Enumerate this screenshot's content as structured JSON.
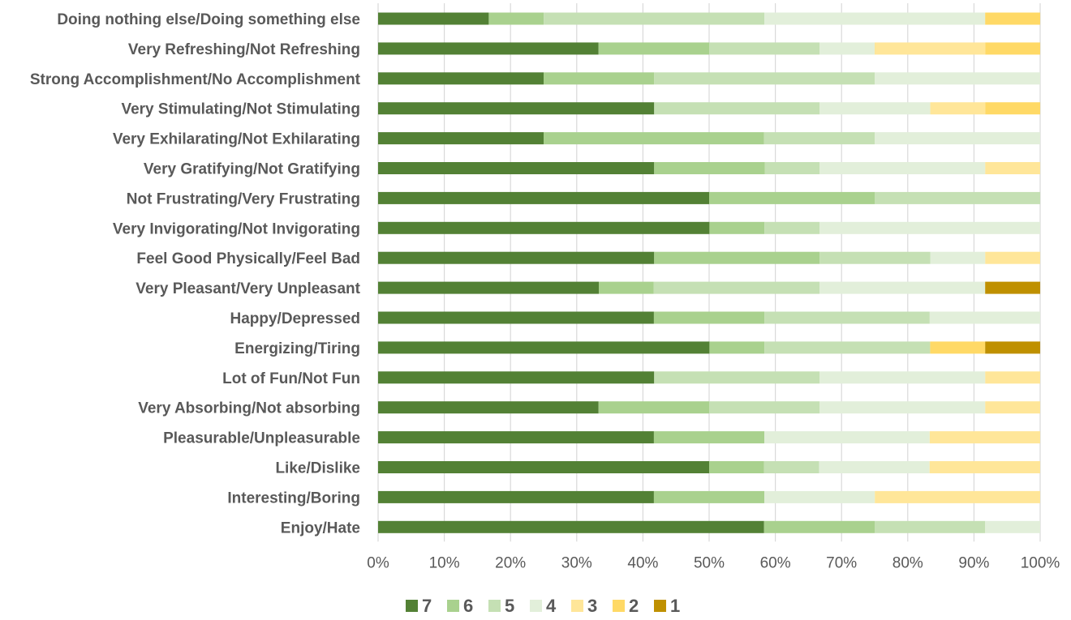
{
  "chart_data": {
    "type": "bar",
    "stacked": "percent",
    "orientation": "horizontal",
    "categories": [
      "Doing nothing else/Doing something else",
      "Very Refreshing/Not Refreshing",
      "Strong Accomplishment/No Accomplishment",
      "Very Stimulating/Not Stimulating",
      "Very Exhilarating/Not Exhilarating",
      "Very Gratifying/Not Gratifying",
      "Not Frustrating/Very Frustrating",
      "Very Invigorating/Not Invigorating",
      "Feel Good Physically/Feel Bad",
      "Very Pleasant/Very Unpleasant",
      "Happy/Depressed",
      "Energizing/Tiring",
      "Lot of Fun/Not Fun",
      "Very Absorbing/Not absorbing",
      "Pleasurable/Unpleasurable",
      "Like/Dislike",
      "Interesting/Boring",
      "Enjoy/Hate"
    ],
    "series": [
      {
        "name": "7",
        "color": "#538135",
        "values": [
          16.7,
          33.3,
          25.0,
          41.7,
          25.0,
          41.7,
          50.0,
          50.0,
          41.7,
          33.3,
          41.7,
          50.0,
          41.7,
          33.3,
          41.7,
          50.0,
          41.7,
          58.3
        ]
      },
      {
        "name": "6",
        "color": "#a9d18e",
        "values": [
          8.3,
          16.7,
          16.7,
          0,
          33.3,
          16.7,
          25.0,
          8.3,
          25.0,
          8.3,
          16.7,
          8.3,
          0,
          16.7,
          16.7,
          8.3,
          16.7,
          16.7
        ]
      },
      {
        "name": "5",
        "color": "#c5e0b4",
        "values": [
          33.3,
          16.7,
          33.3,
          25.0,
          16.7,
          8.3,
          25.0,
          8.3,
          16.7,
          25.0,
          25.0,
          25.0,
          25.0,
          16.7,
          0,
          8.3,
          0,
          16.7
        ]
      },
      {
        "name": "4",
        "color": "#e2efda",
        "values": [
          33.3,
          8.3,
          25.0,
          16.7,
          25.0,
          25.0,
          0,
          33.3,
          8.3,
          25.0,
          16.7,
          0,
          25.0,
          25.0,
          25.0,
          16.7,
          16.7,
          8.3
        ]
      },
      {
        "name": "3",
        "color": "#ffe699",
        "values": [
          0,
          16.7,
          0,
          8.3,
          0,
          8.3,
          0,
          0,
          8.3,
          0,
          0,
          0,
          8.3,
          8.3,
          16.7,
          16.7,
          25.0,
          0
        ]
      },
      {
        "name": "2",
        "color": "#ffd966",
        "values": [
          8.3,
          8.3,
          0,
          8.3,
          0,
          0,
          0,
          0,
          0,
          0,
          0,
          8.3,
          0,
          0,
          0,
          0,
          0,
          0
        ]
      },
      {
        "name": "1",
        "color": "#bf9000",
        "values": [
          0,
          0,
          0,
          0,
          0,
          0,
          0,
          0,
          0,
          8.3,
          0,
          8.3,
          0,
          0,
          0,
          0,
          0,
          0
        ]
      }
    ],
    "xlim": [
      0,
      100
    ],
    "x_ticks": [
      "0%",
      "10%",
      "20%",
      "30%",
      "40%",
      "50%",
      "60%",
      "70%",
      "80%",
      "90%",
      "100%"
    ],
    "grid": "vertical",
    "legend": "bottom",
    "title": "",
    "xlabel": "",
    "ylabel": ""
  }
}
